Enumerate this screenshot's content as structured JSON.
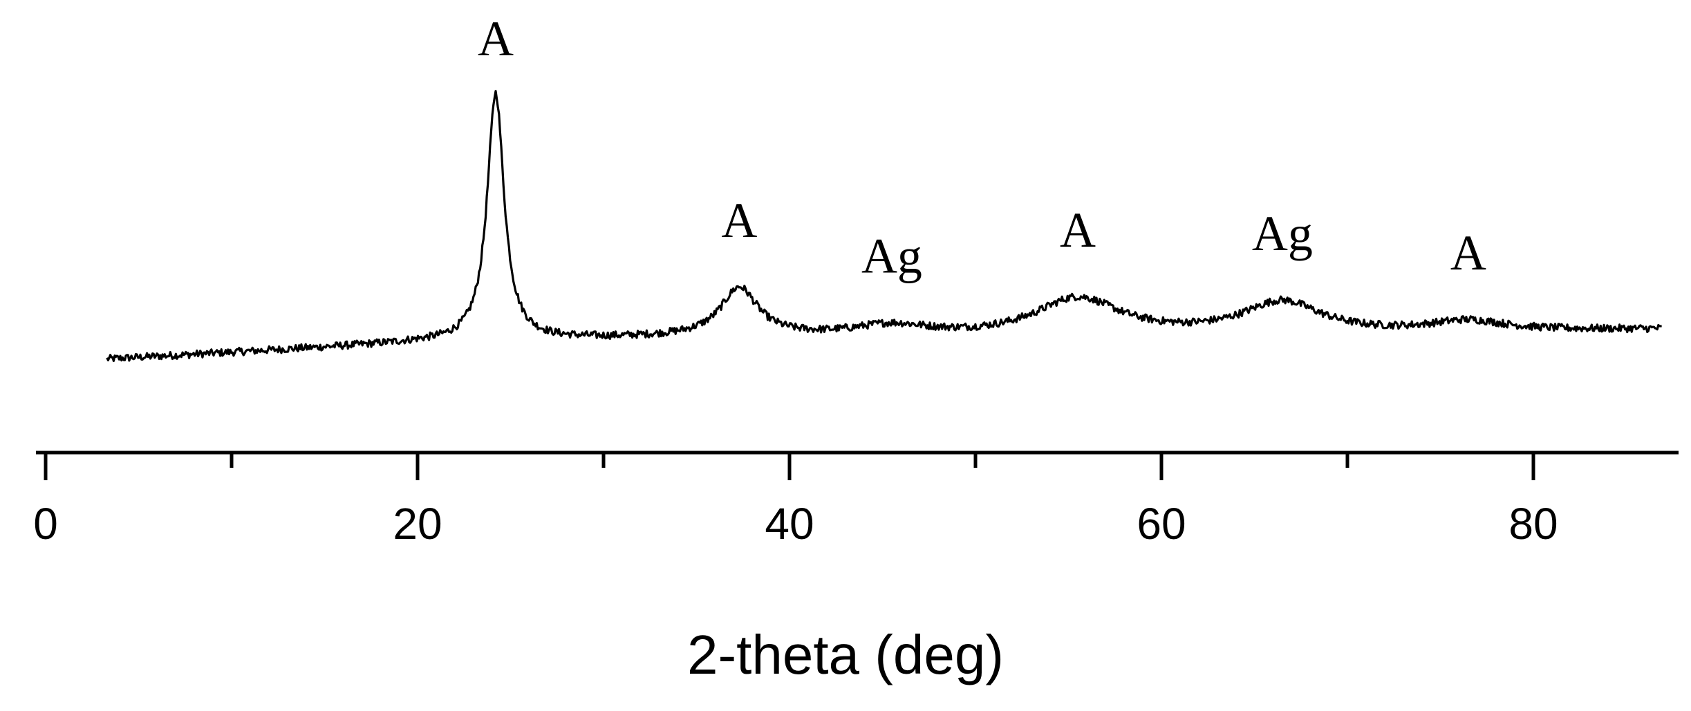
{
  "chart_data": {
    "type": "line",
    "title": "",
    "xlabel": "2-theta (deg)",
    "ylabel": "",
    "xlim": [
      0,
      88
    ],
    "x_major_ticks": [
      0,
      20,
      40,
      60,
      80
    ],
    "x_tick_labels": [
      "0",
      "20",
      "40",
      "60",
      "80"
    ],
    "x_minor_ticks": [
      10,
      30,
      50,
      70
    ],
    "y_axis_shown": false,
    "grid": false,
    "line_color": "#000000",
    "series": [
      {
        "x_range": [
          3.3,
          86.9
        ],
        "baseline": [
          [
            3.3,
            0.0
          ],
          [
            20,
            0.06
          ],
          [
            35,
            0.08
          ],
          [
            50,
            0.08
          ],
          [
            70,
            0.09
          ],
          [
            86.9,
            0.11
          ]
        ],
        "peaks": [
          {
            "center": 24.2,
            "height": 0.92,
            "width": 0.55
          },
          {
            "center": 37.3,
            "height": 0.18,
            "width": 1.2
          },
          {
            "center": 45.5,
            "height": 0.04,
            "width": 2.5
          },
          {
            "center": 55.5,
            "height": 0.14,
            "width": 2.8
          },
          {
            "center": 66.5,
            "height": 0.12,
            "width": 2.6
          },
          {
            "center": 76.5,
            "height": 0.04,
            "width": 2.5
          }
        ]
      }
    ],
    "annotations": [
      {
        "text": "A",
        "x": 24.2
      },
      {
        "text": "A",
        "x": 37.3
      },
      {
        "text": "Ag",
        "x": 45.5
      },
      {
        "text": "A",
        "x": 55.5
      },
      {
        "text": "Ag",
        "x": 66.5
      },
      {
        "text": "A",
        "x": 76.5
      }
    ]
  }
}
